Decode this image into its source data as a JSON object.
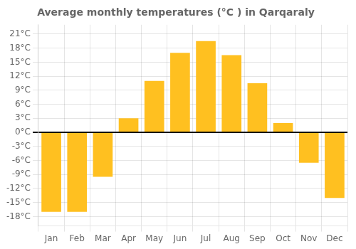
{
  "chart_data": {
    "type": "bar",
    "title": "Average monthly temperatures (°C ) in Qarqaraly",
    "categories": [
      "Jan",
      "Feb",
      "Mar",
      "Apr",
      "May",
      "Jun",
      "Jul",
      "Aug",
      "Sep",
      "Oct",
      "Nov",
      "Dec"
    ],
    "values": [
      -17,
      -17,
      -9.5,
      3,
      11,
      17,
      19.5,
      16.5,
      10.5,
      2,
      -6.5,
      -14
    ],
    "color": "#FFC020",
    "ylim": [
      -20,
      23
    ],
    "yticks": [
      {
        "value": -18,
        "label": "-18°C"
      },
      {
        "value": -15,
        "label": "-15°C"
      },
      {
        "value": -12,
        "label": "-12°C"
      },
      {
        "value": -9,
        "label": "-9°C"
      },
      {
        "value": -6,
        "label": "-6°C"
      },
      {
        "value": -3,
        "label": "-3°C"
      },
      {
        "value": 0,
        "label": "0°C"
      },
      {
        "value": 3,
        "label": "3°C"
      },
      {
        "value": 6,
        "label": "6°C"
      },
      {
        "value": 9,
        "label": "9°C"
      },
      {
        "value": 12,
        "label": "12°C"
      },
      {
        "value": 15,
        "label": "15°C"
      },
      {
        "value": 18,
        "label": "18°C"
      },
      {
        "value": 21,
        "label": "21°C"
      }
    ],
    "grid": true
  }
}
